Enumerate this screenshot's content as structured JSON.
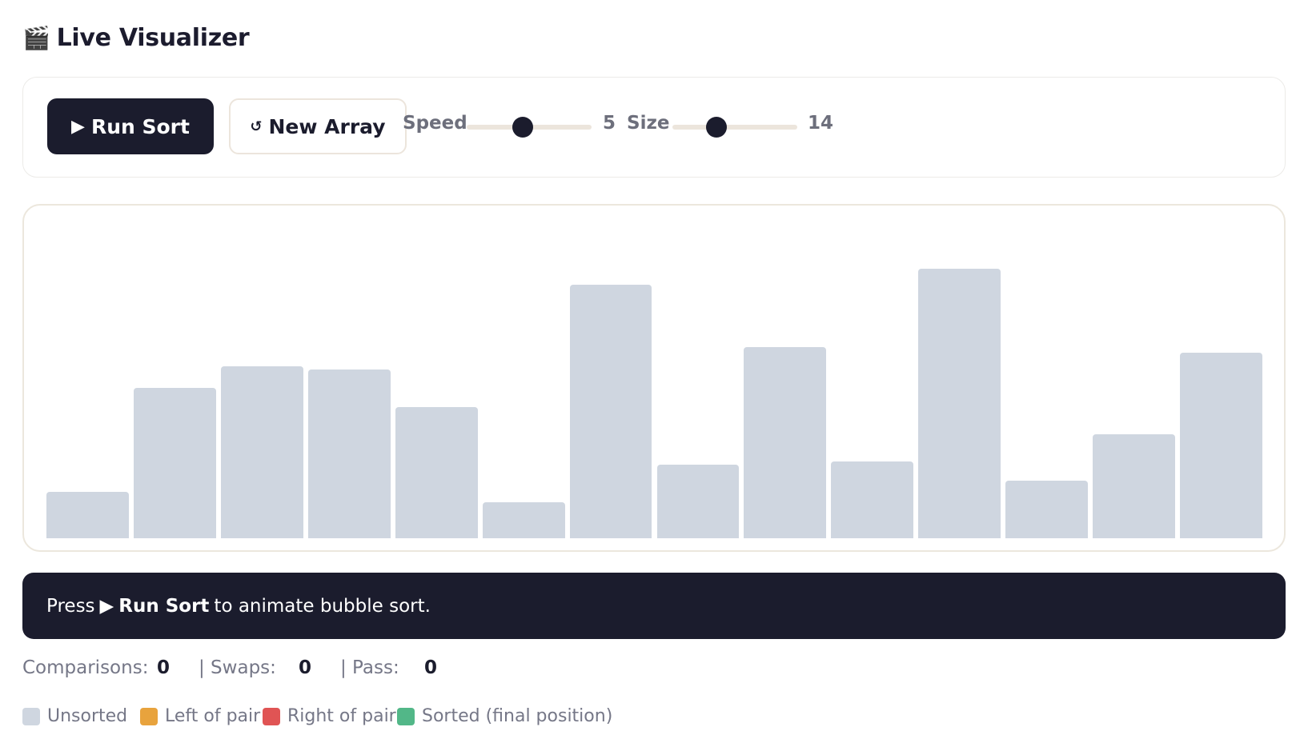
{
  "header": {
    "icon": "clapperboard-icon",
    "emoji": "🎬",
    "title": "Live Visualizer"
  },
  "controls": {
    "run_label": "Run Sort",
    "run_icon": "play-icon",
    "new_label": "New Array",
    "new_icon": "refresh-icon",
    "speed_label": "Speed",
    "speed_value": "5",
    "speed_fraction": 0.45,
    "size_label": "Size",
    "size_value": "14",
    "size_fraction": 0.35
  },
  "chart_data": {
    "type": "bar",
    "values": [
      58,
      188,
      215,
      211,
      164,
      45,
      317,
      92,
      239,
      96,
      337,
      72,
      130,
      232
    ],
    "ymax": 360,
    "bar_color": "#cfd6e0"
  },
  "status": {
    "prefix": "Press",
    "action": "Run Sort",
    "suffix": "to animate bubble sort."
  },
  "stats": {
    "comparisons_label": "Comparisons:",
    "comparisons_value": "0",
    "swaps_label": "| Swaps:",
    "swaps_value": "0",
    "pass_label": "| Pass:",
    "pass_value": "0"
  },
  "legend": [
    {
      "label": "Unsorted",
      "color": "#cfd6e0"
    },
    {
      "label": "Left of pair",
      "color": "#e8a33d"
    },
    {
      "label": "Right of pair",
      "color": "#e05454"
    },
    {
      "label": "Sorted (final position)",
      "color": "#52b788"
    }
  ]
}
